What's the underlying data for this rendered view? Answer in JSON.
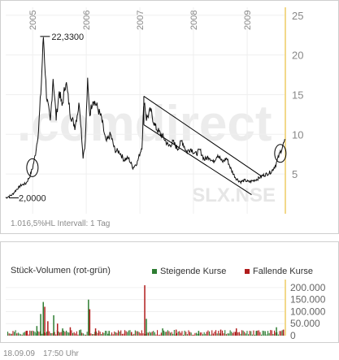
{
  "chart_data": [
    {
      "type": "line",
      "subtype": "price",
      "symbol_watermark": "SLX.NSE",
      "brand_watermark": ".comdirect",
      "x_tick_labels": [
        "2005",
        "2006",
        "2007",
        "2008",
        "2009"
      ],
      "x_tick_dates": [
        "2005-01-01",
        "2006-01-01",
        "2007-01-01",
        "2008-01-01",
        "2009-01-01"
      ],
      "x_range": [
        "2004-07-01",
        "2009-09-18"
      ],
      "ylim": [
        0,
        26
      ],
      "y_scale": "linear",
      "y_axis_side": "right",
      "y_tick_labels": [
        "5",
        "10",
        "15",
        "20",
        "25"
      ],
      "y_ticks": [
        5,
        10,
        15,
        20,
        25
      ],
      "grid": true,
      "series": [
        {
          "color": "#000000",
          "points": [
            [
              "2004-07-01",
              2.0
            ],
            [
              "2004-08-15",
              2.4
            ],
            [
              "2004-09-15",
              3.1
            ],
            [
              "2004-10-15",
              3.6
            ],
            [
              "2004-11-15",
              3.8
            ],
            [
              "2004-12-10",
              4.6
            ],
            [
              "2005-01-01",
              5.8
            ],
            [
              "2005-01-20",
              7.6
            ],
            [
              "2005-02-10",
              10.5
            ],
            [
              "2005-03-01",
              16.5
            ],
            [
              "2005-03-15",
              22.33
            ],
            [
              "2005-04-05",
              15.0
            ],
            [
              "2005-05-01",
              11.5
            ],
            [
              "2005-05-20",
              17.2
            ],
            [
              "2005-06-10",
              12.0
            ],
            [
              "2005-07-01",
              15.5
            ],
            [
              "2005-07-20",
              13.5
            ],
            [
              "2005-08-15",
              16.8
            ],
            [
              "2005-09-15",
              12.5
            ],
            [
              "2005-10-15",
              11.0
            ],
            [
              "2005-11-15",
              14.0
            ],
            [
              "2005-12-10",
              7.2
            ],
            [
              "2005-12-25",
              9.0
            ],
            [
              "2006-01-10",
              16.5
            ],
            [
              "2006-01-25",
              12.5
            ],
            [
              "2006-02-15",
              14.5
            ],
            [
              "2006-03-15",
              13.5
            ],
            [
              "2006-04-15",
              12.0
            ],
            [
              "2006-05-15",
              9.0
            ],
            [
              "2006-06-15",
              10.0
            ],
            [
              "2006-07-15",
              8.0
            ],
            [
              "2006-08-15",
              7.8
            ],
            [
              "2006-09-15",
              6.8
            ],
            [
              "2006-10-15",
              7.0
            ],
            [
              "2006-11-15",
              5.8
            ],
            [
              "2006-12-15",
              6.5
            ],
            [
              "2007-01-15",
              8.5
            ],
            [
              "2007-01-30",
              14.5
            ],
            [
              "2007-02-15",
              12.0
            ],
            [
              "2007-03-15",
              13.0
            ],
            [
              "2007-04-15",
              11.0
            ],
            [
              "2007-05-15",
              10.2
            ],
            [
              "2007-06-15",
              9.5
            ],
            [
              "2007-07-15",
              8.5
            ],
            [
              "2007-08-15",
              9.0
            ],
            [
              "2007-09-15",
              8.2
            ],
            [
              "2007-10-15",
              9.2
            ],
            [
              "2007-11-15",
              7.8
            ],
            [
              "2007-12-15",
              8.2
            ],
            [
              "2008-01-15",
              7.5
            ],
            [
              "2008-02-15",
              8.0
            ],
            [
              "2008-03-15",
              6.8
            ],
            [
              "2008-04-15",
              7.2
            ],
            [
              "2008-05-15",
              6.5
            ],
            [
              "2008-06-15",
              7.5
            ],
            [
              "2008-07-15",
              6.5
            ],
            [
              "2008-08-15",
              7.0
            ],
            [
              "2008-09-15",
              5.5
            ],
            [
              "2008-10-15",
              4.5
            ],
            [
              "2008-11-15",
              4.0
            ],
            [
              "2008-12-15",
              4.2
            ],
            [
              "2009-01-15",
              4.0
            ],
            [
              "2009-02-15",
              4.2
            ],
            [
              "2009-03-15",
              4.4
            ],
            [
              "2009-04-15",
              4.8
            ],
            [
              "2009-05-15",
              5.0
            ],
            [
              "2009-06-15",
              5.3
            ],
            [
              "2009-07-15",
              6.2
            ],
            [
              "2009-08-15",
              7.8
            ],
            [
              "2009-09-01",
              8.6
            ],
            [
              "2009-09-18",
              9.3
            ]
          ]
        }
      ],
      "annotations": [
        {
          "text": "22,3300",
          "date": "2005-03-15",
          "value": 22.33,
          "kind": "high"
        },
        {
          "text": "2,0000",
          "date": "2004-07-01",
          "value": 2.0,
          "kind": "low"
        }
      ],
      "channel": {
        "upper": [
          [
            "2007-01-28",
            14.8
          ],
          [
            "2009-04-10",
            4.7
          ]
        ],
        "lower": [
          [
            "2007-01-28",
            11.2
          ],
          [
            "2009-01-31",
            2.4
          ]
        ]
      },
      "circles": [
        {
          "date": "2004-12-30",
          "value": 5.8
        },
        {
          "date": "2009-08-15",
          "value": 7.6
        }
      ],
      "percent_label": "1.016,5%",
      "hl_label": "HL",
      "interval_label": "Intervall: 1 Tag"
    },
    {
      "type": "bar",
      "subtype": "volume",
      "title": "Stück-Volumen (rot-grün)",
      "legend": [
        {
          "label": "Steigende Kurse",
          "color": "#2e7d32"
        },
        {
          "label": "Fallende Kurse",
          "color": "#b01c1c"
        }
      ],
      "ylim": [
        0,
        220000
      ],
      "y_axis_side": "right",
      "y_tick_labels": [
        "0",
        "50.000",
        "100.000",
        "150.000",
        "200.000"
      ],
      "y_ticks": [
        0,
        50000,
        100000,
        150000,
        200000
      ],
      "spikes": [
        [
          "2004-11-15",
          20000,
          "down"
        ],
        [
          "2005-01-25",
          40000,
          "up"
        ],
        [
          "2005-02-20",
          90000,
          "up"
        ],
        [
          "2005-03-10",
          140000,
          "up"
        ],
        [
          "2005-03-20",
          120000,
          "down"
        ],
        [
          "2005-04-10",
          60000,
          "down"
        ],
        [
          "2005-05-20",
          85000,
          "up"
        ],
        [
          "2005-06-15",
          50000,
          "down"
        ],
        [
          "2005-07-20",
          30000,
          "up"
        ],
        [
          "2005-09-10",
          35000,
          "down"
        ],
        [
          "2005-11-20",
          25000,
          "up"
        ],
        [
          "2006-01-12",
          150000,
          "up"
        ],
        [
          "2006-01-20",
          110000,
          "down"
        ],
        [
          "2006-03-01",
          30000,
          "down"
        ],
        [
          "2006-06-01",
          20000,
          "up"
        ],
        [
          "2006-11-01",
          15000,
          "down"
        ],
        [
          "2007-01-30",
          210000,
          "down"
        ],
        [
          "2007-02-10",
          70000,
          "up"
        ],
        [
          "2007-06-01",
          30000,
          "up"
        ],
        [
          "2007-09-01",
          25000,
          "down"
        ],
        [
          "2008-02-01",
          20000,
          "up"
        ],
        [
          "2008-07-01",
          25000,
          "down"
        ],
        [
          "2008-10-15",
          30000,
          "down"
        ],
        [
          "2009-03-01",
          20000,
          "up"
        ],
        [
          "2009-07-15",
          35000,
          "up"
        ],
        [
          "2009-09-01",
          25000,
          "down"
        ]
      ]
    }
  ],
  "footer": {
    "date": "18.09.09",
    "time": "17:50 Uhr"
  }
}
